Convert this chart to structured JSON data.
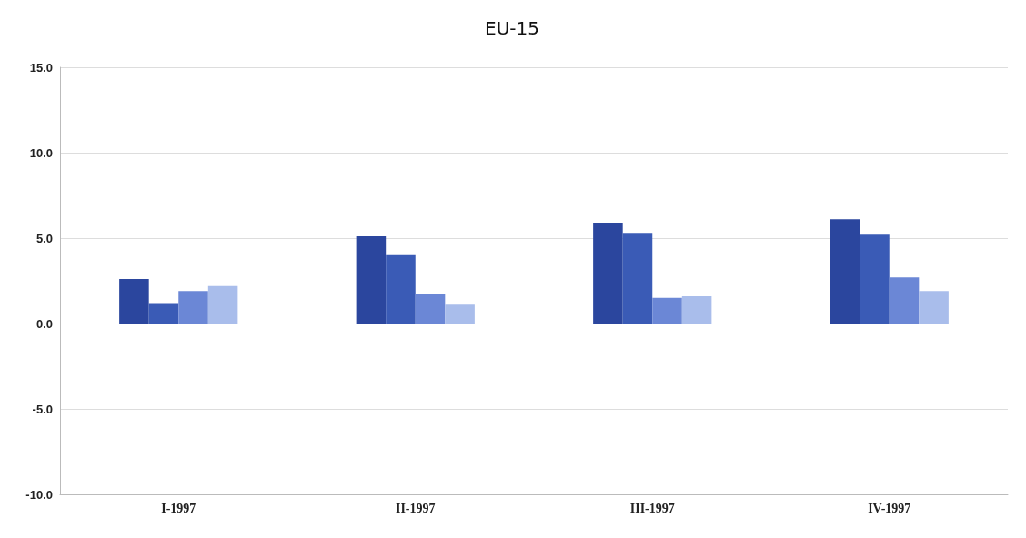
{
  "chart_data": {
    "type": "bar",
    "title": "EU-15",
    "categories": [
      "I-1997",
      "II-1997",
      "III-1997",
      "IV-1997"
    ],
    "series": [
      {
        "color": "#2b469e",
        "values": [
          2.6,
          5.1,
          5.9,
          6.1
        ]
      },
      {
        "color": "#3a5bb6",
        "values": [
          1.2,
          4.0,
          5.3,
          5.2
        ]
      },
      {
        "color": "#6b87d6",
        "values": [
          1.9,
          1.7,
          1.5,
          2.7
        ]
      },
      {
        "color": "#a9bdeb",
        "values": [
          2.2,
          1.1,
          1.6,
          1.9
        ]
      }
    ],
    "ylim": [
      -10,
      15
    ],
    "yticks": [
      {
        "value": -10,
        "label": "-10.0"
      },
      {
        "value": -5,
        "label": "-5.0"
      },
      {
        "value": 0,
        "label": "0.0"
      },
      {
        "value": 5,
        "label": "5.0"
      },
      {
        "value": 10,
        "label": "10.0"
      },
      {
        "value": 15,
        "label": "15.0"
      }
    ],
    "grid": "y"
  }
}
